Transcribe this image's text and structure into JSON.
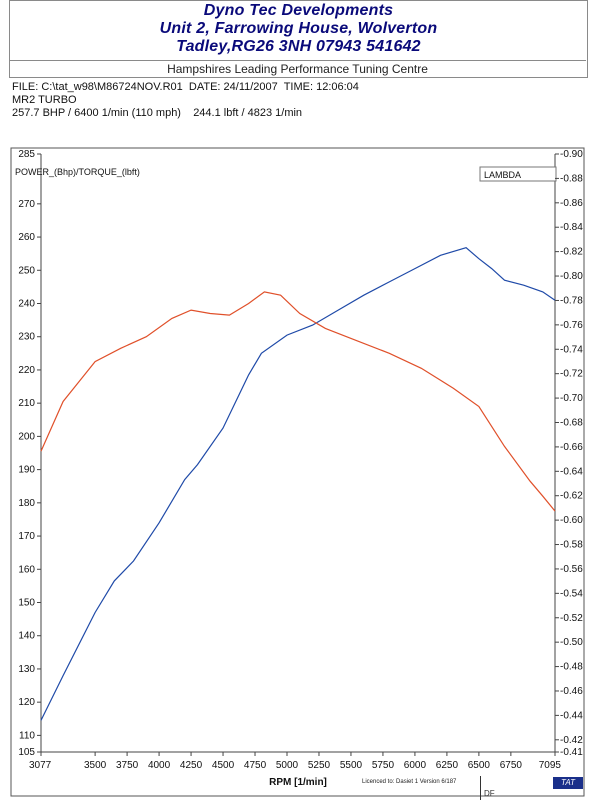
{
  "header": {
    "company_name": "Dyno Tec Developments",
    "address_line": "Unit 2, Farrowing House, Wolverton",
    "city_line": "Tadley,RG26 3NH 07943 541642",
    "tagline": "Hampshires Leading Performance Tuning Centre"
  },
  "run_info": {
    "file_line": "FILE: C:\\tat_w98\\M86724NOV.R01  DATE: 24/11/2007  TIME: 12:06:04",
    "vehicle": "MR2 TURBO",
    "summary": "257.7 BHP / 6400 1/min (110 mph)    244.1 lbft / 4823 1/min"
  },
  "footer": {
    "licence": "Licenced to: Dasiet 1  Version 6/187",
    "df_label": "DF",
    "logo_text": "TAT"
  },
  "chart_data": {
    "type": "line",
    "xlabel": "RPM  [1/min]",
    "ylabel": "POWER_(Bhp)/TORQUE_(lbft)",
    "y2label": "LAMBDA",
    "xlim": [
      3077,
      7095
    ],
    "ylim": [
      105,
      285
    ],
    "y2lim": [
      -0.41,
      -0.9
    ],
    "x_ticks": [
      "3077",
      "3500",
      "3750",
      "4000",
      "4250",
      "4500",
      "4750",
      "5000",
      "5250",
      "5500",
      "5750",
      "6000",
      "6250",
      "6500",
      "6750",
      "7095"
    ],
    "y_ticks": [
      "105",
      "110",
      "120",
      "130",
      "140",
      "150",
      "160",
      "170",
      "180",
      "190",
      "200",
      "210",
      "220",
      "230",
      "240",
      "250",
      "260",
      "270",
      "285"
    ],
    "y2_ticks": [
      "-0.41",
      "-0.42",
      "-0.44",
      "-0.46",
      "-0.48",
      "-0.50",
      "-0.52",
      "-0.54",
      "-0.56",
      "-0.58",
      "-0.60",
      "-0.62",
      "-0.64",
      "-0.66",
      "-0.68",
      "-0.70",
      "-0.72",
      "-0.74",
      "-0.76",
      "-0.78",
      "-0.80",
      "-0.82",
      "-0.84",
      "-0.86",
      "-0.88",
      "-0.90"
    ],
    "grid": false,
    "legend": "none",
    "series": [
      {
        "color": "#1f4aa8",
        "x": [
          3077,
          3250,
          3500,
          3650,
          3800,
          4000,
          4200,
          4300,
          4500,
          4700,
          4800,
          5000,
          5200,
          5400,
          5600,
          5800,
          6000,
          6200,
          6400,
          6500,
          6600,
          6700,
          6850,
          7000,
          7095
        ],
        "y": [
          114.5,
          128,
          147,
          156.5,
          162.5,
          174,
          187,
          191.5,
          202.5,
          218.5,
          225,
          230.5,
          233.5,
          238,
          242.5,
          246.5,
          250.5,
          254.5,
          256.8,
          253.5,
          250.5,
          247,
          245.5,
          243.5,
          241
        ]
      },
      {
        "color": "#e0502a",
        "x": [
          3077,
          3250,
          3500,
          3700,
          3900,
          4100,
          4250,
          4400,
          4550,
          4700,
          4823,
          4950,
          5100,
          5300,
          5500,
          5800,
          6050,
          6300,
          6500,
          6700,
          6900,
          7000,
          7095
        ],
        "y": [
          195.5,
          210.5,
          222.5,
          226.5,
          230,
          235.5,
          238,
          237,
          236.5,
          240,
          243.5,
          242.5,
          237,
          232.5,
          229.5,
          225,
          220.5,
          214.5,
          209,
          197,
          186.5,
          182,
          177.5
        ]
      }
    ]
  }
}
